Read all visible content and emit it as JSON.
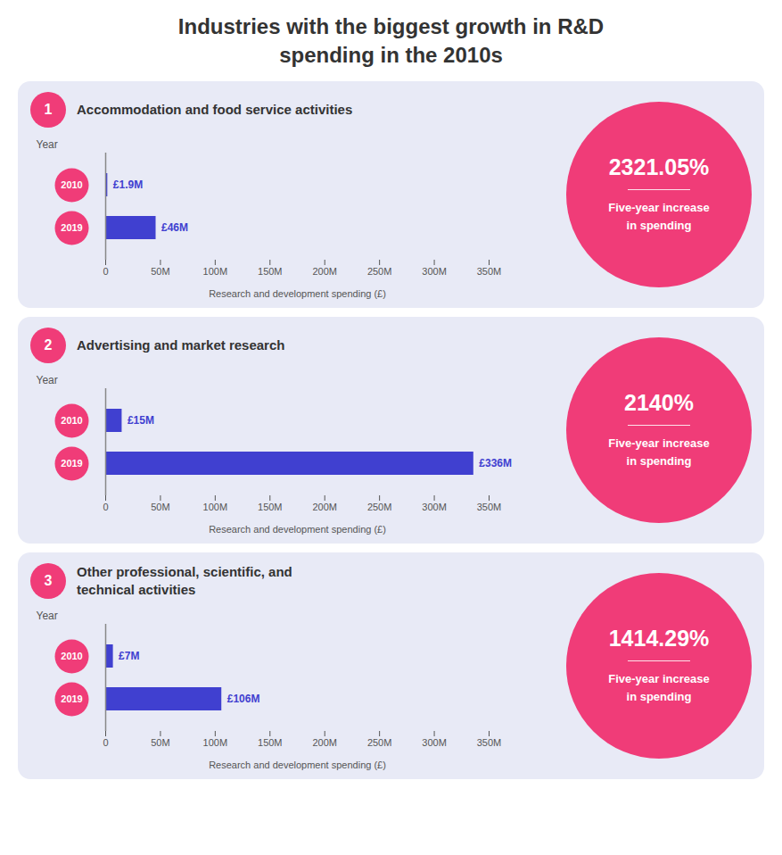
{
  "title": "Industries with the biggest growth in R&D\nspending in the 2010s",
  "chart_data": [
    {
      "type": "bar",
      "orientation": "horizontal",
      "title": "Accommodation and food service activities",
      "categories": [
        "2010",
        "2019"
      ],
      "values": [
        1.9,
        46
      ],
      "value_labels": [
        "£1.9M",
        "£46M"
      ],
      "data_labels": true,
      "color": "#4040d0",
      "xlabel": "Research and development spending (£)",
      "ylabel": "Year",
      "xlim": [
        0,
        350
      ],
      "xticks": [
        0,
        {
          "value": 50,
          "label": "50M"
        },
        {
          "value": 100,
          "label": "100M"
        },
        {
          "value": 150,
          "label": "150M"
        },
        {
          "value": 200,
          "label": "200M"
        },
        {
          "value": 250,
          "label": "250M"
        },
        {
          "value": 300,
          "label": "300M"
        },
        {
          "value": 350,
          "label": "350M"
        }
      ],
      "annotations": [
        "1",
        "2321.05%",
        "Five-year increase\nin spending"
      ]
    },
    {
      "type": "bar",
      "orientation": "horizontal",
      "title": "Advertising and market research",
      "categories": [
        "2010",
        "2019"
      ],
      "values": [
        15,
        336
      ],
      "value_labels": [
        "£15M",
        "£336M"
      ],
      "data_labels": true,
      "color": "#4040d0",
      "xlabel": "Research and development spending (£)",
      "ylabel": "Year",
      "xlim": [
        0,
        350
      ],
      "xticks": [
        0,
        {
          "value": 50,
          "label": "50M"
        },
        {
          "value": 100,
          "label": "100M"
        },
        {
          "value": 150,
          "label": "150M"
        },
        {
          "value": 200,
          "label": "200M"
        },
        {
          "value": 250,
          "label": "250M"
        },
        {
          "value": 300,
          "label": "300M"
        },
        {
          "value": 350,
          "label": "350M"
        }
      ],
      "annotations": [
        "2",
        "2140%",
        "Five-year increase\nin spending"
      ]
    },
    {
      "type": "bar",
      "orientation": "horizontal",
      "title": "Other professional, scientific, and\ntechnical activities",
      "categories": [
        "2010",
        "2019"
      ],
      "values": [
        7,
        106
      ],
      "value_labels": [
        "£7M",
        "£106M"
      ],
      "data_labels": true,
      "color": "#4040d0",
      "xlabel": "Research and development spending (£)",
      "ylabel": "Year",
      "xlim": [
        0,
        350
      ],
      "xticks": [
        0,
        {
          "value": 50,
          "label": "50M"
        },
        {
          "value": 100,
          "label": "100M"
        },
        {
          "value": 150,
          "label": "150M"
        },
        {
          "value": 200,
          "label": "200M"
        },
        {
          "value": 250,
          "label": "250M"
        },
        {
          "value": 300,
          "label": "300M"
        },
        {
          "value": 350,
          "label": "350M"
        }
      ],
      "annotations": [
        "3",
        "1414.29%",
        "Five-year increase\nin spending"
      ]
    }
  ]
}
